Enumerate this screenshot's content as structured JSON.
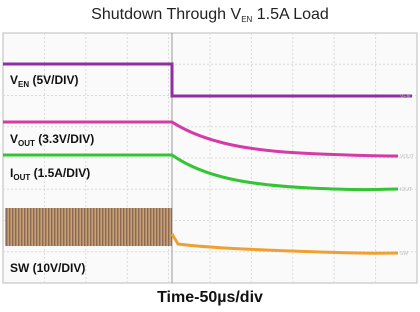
{
  "header": {
    "title": [
      "Shutdown Through V",
      "EN",
      " 1.5A Load"
    ]
  },
  "traces": [
    {
      "label": [
        "V",
        "EN",
        " (5V/DIV)"
      ],
      "tag": "VEN"
    },
    {
      "label": [
        "V",
        "OUT",
        " (3.3V/DIV)"
      ],
      "tag": "VOUT"
    },
    {
      "label": [
        "I",
        "OUT",
        " (1.5A/DIV)"
      ],
      "tag": "IOUT"
    },
    {
      "label": [
        "SW (10V/DIV)"
      ],
      "tag": "SW"
    }
  ],
  "footer": "Time-50µs/div"
}
